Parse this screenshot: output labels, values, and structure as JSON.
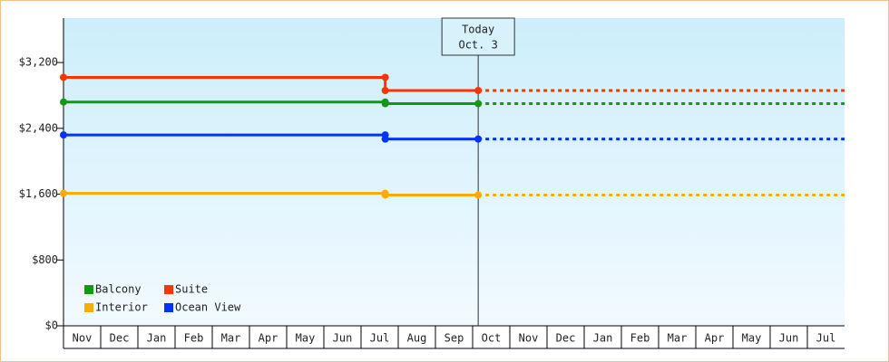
{
  "chart_data": {
    "type": "line",
    "categories": [
      "Nov",
      "Dec",
      "Jan",
      "Feb",
      "Mar",
      "Apr",
      "May",
      "Jun",
      "Jul",
      "Aug",
      "Sep",
      "Oct",
      "Nov",
      "Dec",
      "Jan",
      "Feb",
      "Mar",
      "Apr",
      "May",
      "Jun",
      "Jul"
    ],
    "x": [
      0,
      8.65,
      8.65,
      11.15,
      21
    ],
    "xlim": [
      0,
      21
    ],
    "ylim": [
      0,
      3740
    ],
    "yticks": [
      {
        "value": 0,
        "label": "$0"
      },
      {
        "value": 800,
        "label": "$800"
      },
      {
        "value": 1600,
        "label": "$1,600"
      },
      {
        "value": 2400,
        "label": "$2,400"
      },
      {
        "value": 3200,
        "label": "$3,200"
      }
    ],
    "series": [
      {
        "name": "Balcony",
        "color": "#119911",
        "values": [
          2720,
          2720,
          2700,
          2700,
          2700
        ]
      },
      {
        "name": "Suite",
        "color": "#ff3300",
        "values": [
          3020,
          3020,
          2860,
          2860,
          2860
        ]
      },
      {
        "name": "Interior",
        "color": "#ffaa00",
        "values": [
          1610,
          1610,
          1590,
          1590,
          1590
        ]
      },
      {
        "name": "Ocean View",
        "color": "#0033ff",
        "values": [
          2320,
          2320,
          2270,
          2270,
          2270
        ]
      }
    ],
    "annotation": {
      "lines": [
        "Today",
        "Oct. 3"
      ],
      "x": 11.15
    },
    "legend": "bottom-left"
  }
}
